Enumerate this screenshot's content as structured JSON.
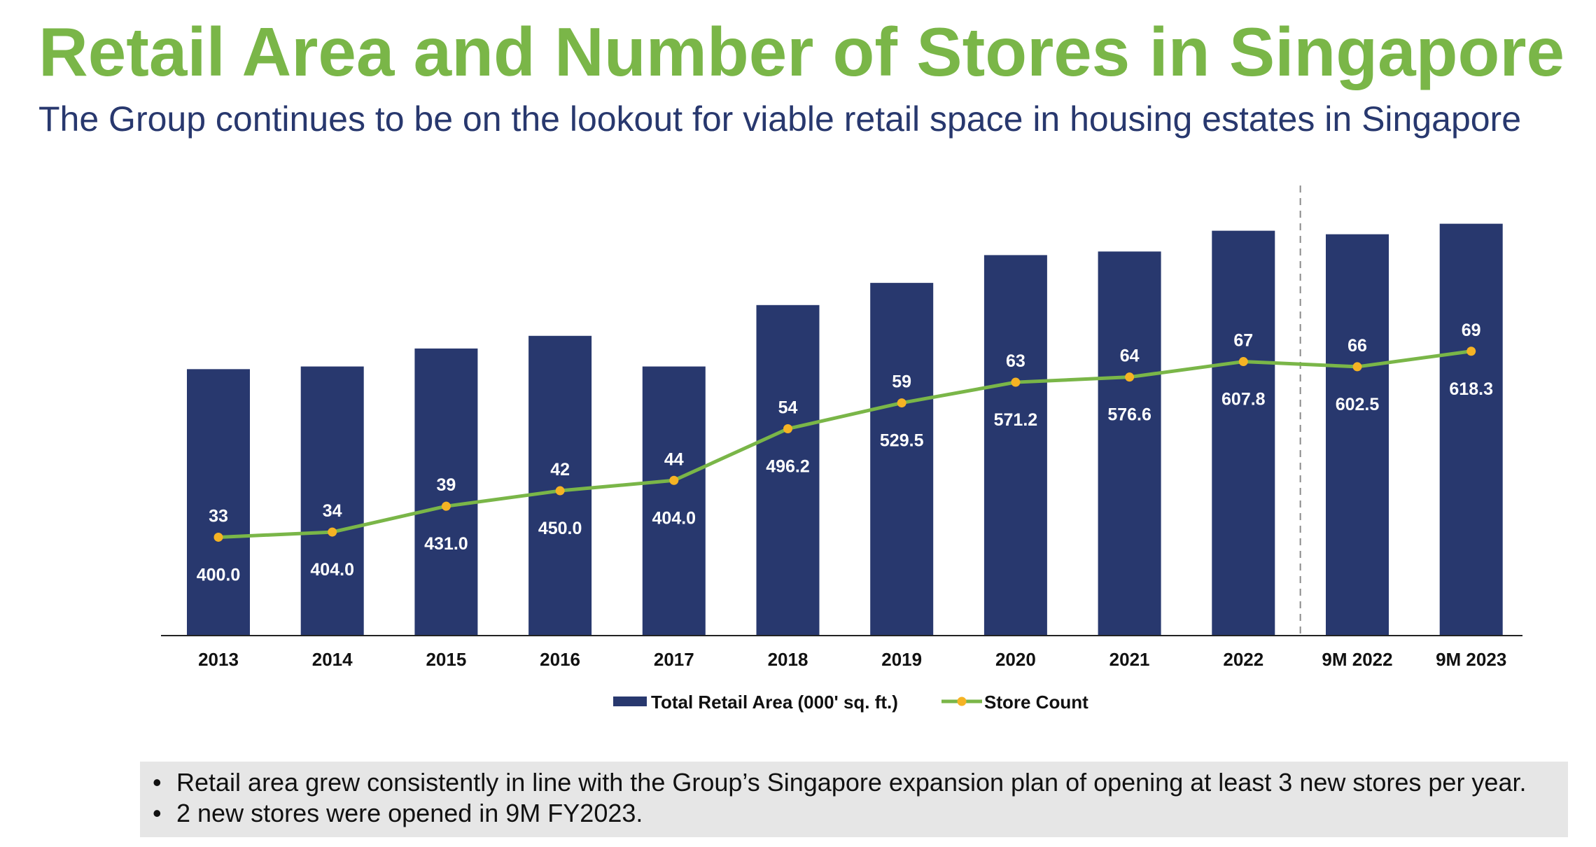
{
  "header": {
    "title": "Retail Area and Number of Stores in Singapore",
    "subtitle": "The Group continues to be on the lookout for viable retail space in housing estates in Singapore"
  },
  "chart_data": {
    "type": "bar",
    "categories": [
      "2013",
      "2014",
      "2015",
      "2016",
      "2017",
      "2018",
      "2019",
      "2020",
      "2021",
      "2022",
      "9M 2022",
      "9M 2023"
    ],
    "series": [
      {
        "name": "Total Retail Area (000' sq. ft.)",
        "type": "bar",
        "axis": "left",
        "color": "#28386e",
        "values": [
          400.0,
          404.0,
          431.0,
          450.0,
          404.0,
          496.2,
          529.5,
          571.2,
          576.6,
          607.8,
          602.5,
          618.3
        ],
        "labels": [
          "400.0",
          "404.0",
          "431.0",
          "450.0",
          "404.0",
          "496.2",
          "529.5",
          "571.2",
          "576.6",
          "607.8",
          "602.5",
          "618.3"
        ]
      },
      {
        "name": "Store Count",
        "type": "line",
        "axis": "right",
        "color": "#7ab648",
        "marker_color": "#f5b324",
        "values": [
          33,
          34,
          39,
          42,
          44,
          54,
          59,
          63,
          64,
          67,
          66,
          69
        ],
        "labels": [
          "33",
          "34",
          "39",
          "42",
          "44",
          "54",
          "59",
          "63",
          "64",
          "67",
          "66",
          "69"
        ]
      }
    ],
    "left_axis_range": [
      0,
      620
    ],
    "right_axis_range": [
      0,
      100
    ],
    "axis_labels_shown": false,
    "grid": false,
    "divider_after_category": "2022",
    "legend_position": "bottom-center"
  },
  "notes": [
    "Retail area grew consistently in line with the Group’s Singapore expansion plan of opening at least 3 new stores per year.",
    "2 new stores were opened in 9M FY2023."
  ]
}
